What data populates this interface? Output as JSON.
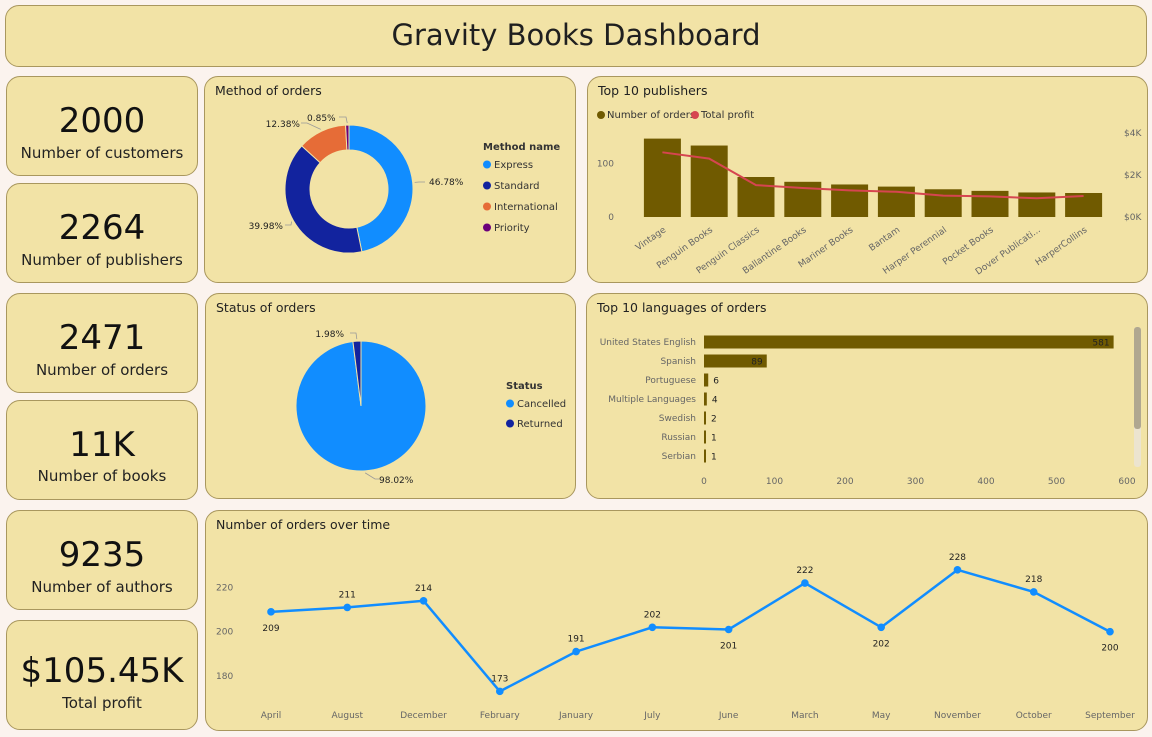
{
  "dashboard": {
    "title": "Gravity Books Dashboard"
  },
  "kpis": [
    {
      "value": "2000",
      "label": "Number of customers"
    },
    {
      "value": "2264",
      "label": "Number of publishers"
    },
    {
      "value": "2471",
      "label": "Number of orders"
    },
    {
      "value": "11K",
      "label": "Number of books"
    },
    {
      "value": "9235",
      "label": "Number of authors"
    },
    {
      "value": "$105.45K",
      "label": "Total profit"
    }
  ],
  "chart_data": [
    {
      "id": "method",
      "type": "pie",
      "donut": true,
      "title": "Method of orders",
      "legend_title": "Method name",
      "legend_position": "right",
      "slices": [
        {
          "name": "Express",
          "value": 46.78,
          "label": "46.78%",
          "color": "#118dff"
        },
        {
          "name": "Standard",
          "value": 39.98,
          "label": "39.98%",
          "color": "#12239e"
        },
        {
          "name": "International",
          "value": 12.38,
          "label": "12.38%",
          "color": "#e66c37"
        },
        {
          "name": "Priority",
          "value": 0.85,
          "label": "0.85%",
          "color": "#6b007b"
        }
      ]
    },
    {
      "id": "publishers",
      "type": "bar",
      "title": "Top 10 publishers",
      "legend_position": "top-left",
      "categories": [
        "Vintage",
        "Penguin Books",
        "Penguin Classics",
        "Ballantine Books",
        "Mariner Books",
        "Bantam",
        "Harper Perennial",
        "Pocket Books",
        "Dover Publicati...",
        "HarperCollins"
      ],
      "series": [
        {
          "name": "Number of orders",
          "kind": "bar",
          "axis": "left",
          "color": "#705a00",
          "values": [
            147,
            134,
            75,
            66,
            61,
            57,
            52,
            49,
            46,
            45
          ]
        },
        {
          "name": "Total profit",
          "kind": "line",
          "axis": "right",
          "color": "#d64550",
          "values": [
            3080,
            2780,
            1520,
            1380,
            1270,
            1200,
            1020,
            980,
            890,
            1000
          ]
        }
      ],
      "y_left": {
        "ticks": [
          "0",
          "100"
        ],
        "range": [
          0,
          180
        ]
      },
      "y_right": {
        "ticks": [
          "$0K",
          "$2K",
          "$4K"
        ],
        "range": [
          0,
          4000
        ]
      },
      "grid": false
    },
    {
      "id": "status",
      "type": "pie",
      "title": "Status of orders",
      "legend_title": "Status",
      "legend_position": "right",
      "slices": [
        {
          "name": "Cancelled",
          "value": 98.02,
          "label": "98.02%",
          "color": "#118dff"
        },
        {
          "name": "Returned",
          "value": 1.98,
          "label": "1.98%",
          "color": "#12239e"
        }
      ]
    },
    {
      "id": "languages",
      "type": "bar",
      "orientation": "horizontal",
      "title": "Top 10 languages of orders",
      "categories": [
        "United States English",
        "Spanish",
        "Portuguese",
        "Multiple Languages",
        "Swedish",
        "Russian",
        "Serbian"
      ],
      "values": [
        581,
        89,
        6,
        4,
        2,
        1,
        1
      ],
      "x_ticks": [
        "0",
        "100",
        "200",
        "300",
        "400",
        "500",
        "600"
      ],
      "xlim": [
        0,
        600
      ],
      "color": "#705a00",
      "grid": false
    },
    {
      "id": "orders_time",
      "type": "line",
      "title": "Number of orders over time",
      "categories": [
        "April",
        "August",
        "December",
        "February",
        "January",
        "July",
        "June",
        "March",
        "May",
        "November",
        "October",
        "September"
      ],
      "values": [
        209,
        211,
        214,
        173,
        191,
        202,
        201,
        222,
        202,
        228,
        218,
        200
      ],
      "y_ticks": [
        "180",
        "200",
        "220"
      ],
      "ylim": [
        170,
        232
      ],
      "color": "#118dff",
      "grid": false
    }
  ]
}
